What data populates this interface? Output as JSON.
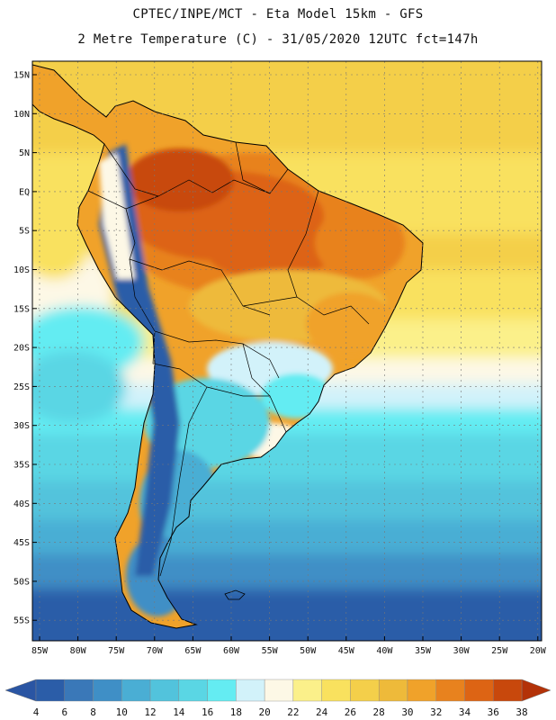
{
  "header": {
    "title_line1": "CPTEC/INPE/MCT -  Eta Model 15km - GFS",
    "title_line2": "2 Metre Temperature (C) - 31/05/2020 12UTC fct=147h"
  },
  "axes": {
    "lat_labels": [
      "15N",
      "10N",
      "5N",
      "EQ",
      "5S",
      "10S",
      "15S",
      "20S",
      "25S",
      "30S",
      "35S",
      "40S",
      "45S",
      "50S",
      "55S"
    ],
    "lon_labels": [
      "85W",
      "80W",
      "75W",
      "70W",
      "65W",
      "60W",
      "55W",
      "50W",
      "45W",
      "40W",
      "35W",
      "30W",
      "25W",
      "20W"
    ]
  },
  "colorbar": {
    "labels": [
      "4",
      "6",
      "8",
      "10",
      "12",
      "14",
      "16",
      "18",
      "20",
      "22",
      "24",
      "26",
      "28",
      "30",
      "32",
      "34",
      "36",
      "38"
    ],
    "colors": [
      "#2b5da8",
      "#3a78b8",
      "#3f8fc6",
      "#4aaed4",
      "#52c3dc",
      "#5ad6e4",
      "#64ecf2",
      "#d2f2fa",
      "#fdf8e6",
      "#fbf08a",
      "#f9e15e",
      "#f4cf4a",
      "#eeba3a",
      "#f0a22a",
      "#e8821e",
      "#dd6414",
      "#c8480c"
    ],
    "under_color": "#2a55a3",
    "over_color": "#b33208"
  }
}
